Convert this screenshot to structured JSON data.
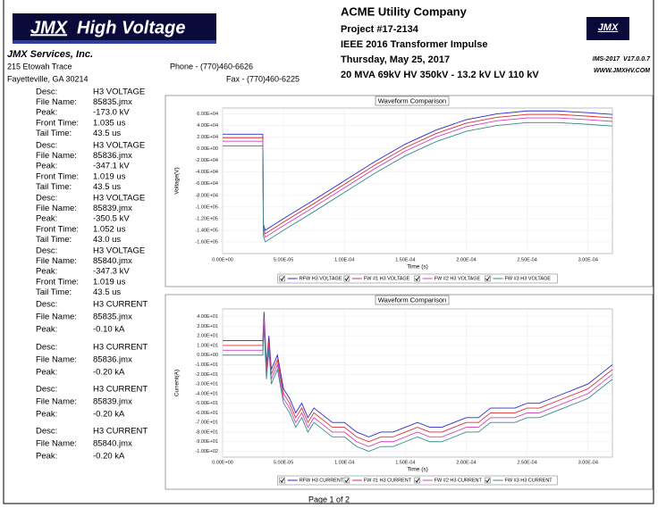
{
  "logo": {
    "brand": "JMX",
    "text": "High Voltage"
  },
  "company": "JMX Services, Inc.",
  "address": [
    "215 Etowah Trace",
    "Fayetteville, GA 30214"
  ],
  "phone": "Phone - (770)460-6626",
  "fax": "Fax - (770)460-6225",
  "report": [
    "ACME Utility Company",
    "Project #17-2134",
    "IEEE 2016 Transformer Impulse",
    "Thursday, May 25, 2017",
    "20 MVA 69kV HV 350kV - 13.2 kV LV 110 kV"
  ],
  "small_logo": "JMX",
  "version": "IMS-2017  V17.0.0.7",
  "website": "WWW.JMXHV.COM",
  "records": [
    [
      [
        "Desc:",
        "H3 VOLTAGE"
      ],
      [
        "File Name:",
        "85835.jmx"
      ],
      [
        "Peak:",
        "-173.0 kV"
      ],
      [
        "Front Time:",
        "1.035 us"
      ],
      [
        "Tail Time:",
        "43.5 us"
      ]
    ],
    [
      [
        "Desc:",
        "H3 VOLTAGE"
      ],
      [
        "File Name:",
        "85836.jmx"
      ],
      [
        "Peak:",
        "-347.1 kV"
      ],
      [
        "Front Time:",
        "1.019 us"
      ],
      [
        "Tail Time:",
        "43.5 us"
      ]
    ],
    [
      [
        "Desc:",
        "H3 VOLTAGE"
      ],
      [
        "File Name:",
        "85839.jmx"
      ],
      [
        "Peak:",
        "-350.5 kV"
      ],
      [
        "Front Time:",
        "1.052 us"
      ],
      [
        "Tail Time:",
        "43.0 us"
      ]
    ],
    [
      [
        "Desc:",
        "H3 VOLTAGE"
      ],
      [
        "File Name:",
        "85840.jmx"
      ],
      [
        "Peak:",
        "-347.3 kV"
      ],
      [
        "Front Time:",
        "1.019 us"
      ],
      [
        "Tail Time:",
        "43.5 us"
      ]
    ],
    [
      [
        "Desc:",
        "H3 CURRENT"
      ],
      [
        "File Name:",
        "85835.jmx"
      ],
      [
        "Peak:",
        "-0.10 kA"
      ]
    ],
    [
      [
        "Desc:",
        "H3 CURRENT"
      ],
      [
        "File Name:",
        "85836.jmx"
      ],
      [
        "Peak:",
        "-0.20 kA"
      ]
    ],
    [
      [
        "Desc:",
        "H3 CURRENT"
      ],
      [
        "File Name:",
        "85839.jmx"
      ],
      [
        "Peak:",
        "-0.20 kA"
      ]
    ],
    [
      [
        "Desc:",
        "H3 CURRENT"
      ],
      [
        "File Name:",
        "85840.jmx"
      ],
      [
        "Peak:",
        "-0.20 kA"
      ]
    ]
  ],
  "footer": "Page 1 of 2",
  "chart_data": [
    {
      "type": "line",
      "title": "Waveform Comparison",
      "x_label": "Time (s)",
      "y_label": "Voltage(V)",
      "grid": true,
      "legend": "bottom",
      "xlim": [
        0,
        0.00032
      ],
      "ylim": [
        -180000,
        70000
      ],
      "xticks": [
        {
          "value": 0,
          "label": "0.00E+00"
        },
        {
          "value": 5e-05,
          "label": "5.00E-05"
        },
        {
          "value": 0.0001,
          "label": "1.00E-04"
        },
        {
          "value": 0.00015,
          "label": "1.50E-04"
        },
        {
          "value": 0.0002,
          "label": "2.00E-04"
        },
        {
          "value": 0.00025,
          "label": "2.50E-04"
        },
        {
          "value": 0.0003,
          "label": "3.00E-04"
        }
      ],
      "yticks": [
        {
          "value": 60000,
          "label": "6.00E+04"
        },
        {
          "value": 40000,
          "label": "4.00E+04"
        },
        {
          "value": 20000,
          "label": "2.00E+04"
        },
        {
          "value": 0,
          "label": "0.00E+00"
        },
        {
          "value": -20000,
          "label": "-2.00E+04"
        },
        {
          "value": -40000,
          "label": "-4.00E+04"
        },
        {
          "value": -60000,
          "label": "-6.00E+04"
        },
        {
          "value": -80000,
          "label": "-8.00E+04"
        },
        {
          "value": -100000,
          "label": "-1.00E+05"
        },
        {
          "value": -120000,
          "label": "-1.20E+05"
        },
        {
          "value": -140000,
          "label": "-1.40E+05"
        },
        {
          "value": -160000,
          "label": "-1.60E+05"
        }
      ],
      "x": [
        0,
        3.3e-05,
        3.35e-05,
        3.5e-05,
        5e-05,
        7.5e-05,
        0.0001,
        0.000125,
        0.00015,
        0.000175,
        0.0002,
        0.000225,
        0.00025,
        0.000275,
        0.0003,
        0.00032
      ],
      "series": [
        {
          "name": "RFW H3 VOLTAGE",
          "color": "#2b2bd0",
          "values": [
            25000,
            25000,
            -130000,
            -140000,
            -120000,
            -88000,
            -55000,
            -22000,
            8000,
            32000,
            50000,
            60000,
            65000,
            65000,
            62000,
            59000
          ]
        },
        {
          "name": "FW #1 H3 VOLTAGE",
          "color": "#e03030",
          "values": [
            19000,
            19000,
            -136000,
            -146000,
            -126000,
            -94000,
            -61000,
            -28000,
            2000,
            26000,
            44000,
            54000,
            59000,
            59000,
            56000,
            53000
          ]
        },
        {
          "name": "FW #2 H3 VOLTAGE",
          "color": "#d040c0",
          "values": [
            13000,
            13000,
            -142000,
            -152000,
            -132000,
            -100000,
            -67000,
            -34000,
            -4000,
            20000,
            38000,
            48000,
            53000,
            53000,
            50000,
            47000
          ]
        },
        {
          "name": "FW #3 H3 VOLTAGE",
          "color": "#3a8a8a",
          "values": [
            5000,
            5000,
            -150000,
            -160000,
            -140000,
            -108000,
            -75000,
            -42000,
            -12000,
            12000,
            30000,
            40000,
            45000,
            45000,
            42000,
            39000
          ]
        }
      ]
    },
    {
      "type": "line",
      "title": "Waveform Comparison",
      "x_label": "Time (s)",
      "y_label": "Current(A)",
      "grid": true,
      "legend": "bottom",
      "xlim": [
        0,
        0.00032
      ],
      "ylim": [
        -106,
        48
      ],
      "xticks": [
        {
          "value": 0,
          "label": "0.00E+00"
        },
        {
          "value": 5e-05,
          "label": "5.00E-05"
        },
        {
          "value": 0.0001,
          "label": "1.00E-04"
        },
        {
          "value": 0.00015,
          "label": "1.50E-04"
        },
        {
          "value": 0.0002,
          "label": "2.00E-04"
        },
        {
          "value": 0.00025,
          "label": "2.50E-04"
        },
        {
          "value": 0.0003,
          "label": "3.00E-04"
        }
      ],
      "yticks": [
        {
          "value": 40,
          "label": "4.00E+01"
        },
        {
          "value": 30,
          "label": "3.00E+01"
        },
        {
          "value": 20,
          "label": "2.00E+01"
        },
        {
          "value": 10,
          "label": "1.00E+01"
        },
        {
          "value": 0,
          "label": "0.00E+00"
        },
        {
          "value": -10,
          "label": "-1.00E+01"
        },
        {
          "value": -20,
          "label": "-2.00E+01"
        },
        {
          "value": -30,
          "label": "-3.00E+01"
        },
        {
          "value": -40,
          "label": "-4.00E+01"
        },
        {
          "value": -50,
          "label": "-5.00E+01"
        },
        {
          "value": -60,
          "label": "-6.00E+01"
        },
        {
          "value": -70,
          "label": "-7.00E+01"
        },
        {
          "value": -80,
          "label": "-8.00E+01"
        },
        {
          "value": -90,
          "label": "-9.00E+01"
        },
        {
          "value": -100,
          "label": "-1.00E+02"
        }
      ],
      "x": [
        0,
        3.3e-05,
        3.4e-05,
        3.6e-05,
        3.8e-05,
        4e-05,
        4.5e-05,
        5e-05,
        5.5e-05,
        6e-05,
        6.5e-05,
        7e-05,
        7.5e-05,
        8e-05,
        9e-05,
        0.0001,
        0.00011,
        0.00012,
        0.00013,
        0.00014,
        0.00015,
        0.00016,
        0.00017,
        0.00018,
        0.00019,
        0.0002,
        0.00021,
        0.00022,
        0.00023,
        0.00024,
        0.00025,
        0.00026,
        0.00027,
        0.00028,
        0.00029,
        0.0003,
        0.00031,
        0.00032
      ],
      "series": [
        {
          "name": "RFW H3 CURRENT",
          "color": "#2b2bd0",
          "values": [
            15,
            15,
            45,
            -10,
            20,
            -15,
            0,
            -35,
            -45,
            -60,
            -50,
            -65,
            -55,
            -60,
            -70,
            -70,
            -80,
            -85,
            -80,
            -80,
            -75,
            -70,
            -75,
            -75,
            -70,
            -65,
            -65,
            -55,
            -55,
            -55,
            -50,
            -50,
            -45,
            -40,
            -35,
            -30,
            -20,
            -10
          ]
        },
        {
          "name": "FW #1 H3 CURRENT",
          "color": "#e03030",
          "values": [
            10,
            10,
            40,
            -15,
            15,
            -20,
            -5,
            -40,
            -50,
            -65,
            -55,
            -70,
            -60,
            -65,
            -75,
            -75,
            -85,
            -90,
            -85,
            -85,
            -80,
            -75,
            -80,
            -80,
            -75,
            -70,
            -70,
            -60,
            -60,
            -60,
            -55,
            -55,
            -50,
            -45,
            -40,
            -35,
            -25,
            -15
          ]
        },
        {
          "name": "FW #2 H3 CURRENT",
          "color": "#d040c0",
          "values": [
            5,
            5,
            35,
            -20,
            10,
            -25,
            -10,
            -45,
            -55,
            -70,
            -60,
            -75,
            -65,
            -70,
            -80,
            -80,
            -90,
            -95,
            -90,
            -90,
            -85,
            -80,
            -85,
            -85,
            -80,
            -75,
            -75,
            -65,
            -65,
            -65,
            -60,
            -60,
            -55,
            -50,
            -45,
            -40,
            -30,
            -20
          ]
        },
        {
          "name": "FW #3 H3 CURRENT",
          "color": "#3a8a8a",
          "values": [
            0,
            0,
            30,
            -25,
            5,
            -30,
            -15,
            -50,
            -60,
            -75,
            -65,
            -80,
            -70,
            -75,
            -85,
            -85,
            -95,
            -100,
            -95,
            -95,
            -90,
            -85,
            -90,
            -90,
            -85,
            -80,
            -80,
            -70,
            -70,
            -70,
            -65,
            -65,
            -60,
            -55,
            -50,
            -45,
            -35,
            -25
          ]
        }
      ]
    }
  ]
}
